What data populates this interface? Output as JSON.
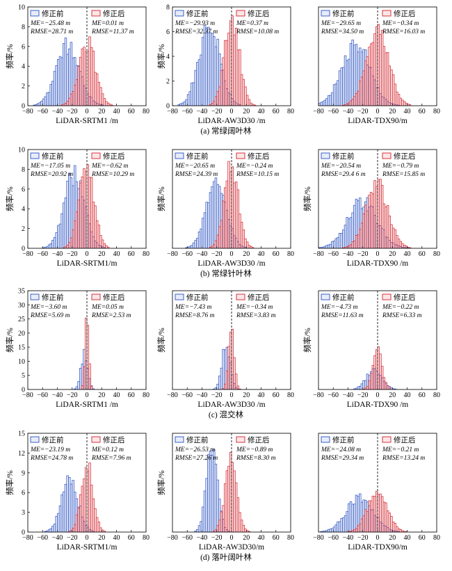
{
  "chart_data": [
    {
      "type": "bar",
      "panel": "a",
      "caption": "(a) 常绿阔叶林",
      "xlabel": "LiDAR-SRTM1 /m",
      "ylabel": "频率/%",
      "xlim": [
        -80,
        80
      ],
      "ylim": [
        0,
        10
      ],
      "xticks": [
        -80,
        -60,
        -40,
        -20,
        0,
        20,
        40,
        60,
        80
      ],
      "yticks": [
        0,
        2,
        4,
        6,
        8,
        10
      ],
      "bin_width": 2.5,
      "series": [
        {
          "name": "修正前",
          "color": "#3b5fc8",
          "mean": -25.48,
          "sd": 15.5,
          "peak": 6.2,
          "stats": [
            "ME=−25.48 m",
            "RMSE=28.71 m"
          ]
        },
        {
          "name": "修正后",
          "color": "#d8333b",
          "mean": 0.01,
          "sd": 11.3,
          "peak": 6.7,
          "stats": [
            "ME=0.01 m",
            "RMSE=11.37 m"
          ]
        }
      ]
    },
    {
      "type": "bar",
      "panel": "a",
      "caption": "",
      "xlabel": "LiDAR-AW3D30 /m",
      "ylabel": "频率/%",
      "xlim": [
        -80,
        80
      ],
      "ylim": [
        0,
        8
      ],
      "xticks": [
        -80,
        -60,
        -40,
        -20,
        0,
        20,
        40,
        60,
        80
      ],
      "yticks": [
        0,
        2,
        4,
        6,
        8
      ],
      "bin_width": 2.5,
      "series": [
        {
          "name": "修正前",
          "color": "#3b5fc8",
          "mean": -29.93,
          "sd": 14,
          "peak": 6.9,
          "stats": [
            "ME=−29.93 m",
            "RMSE=32.37 m"
          ]
        },
        {
          "name": "修正后",
          "color": "#d8333b",
          "mean": 0.37,
          "sd": 10,
          "peak": 7.3,
          "stats": [
            "ME=0.37 m",
            "RMSE=10.08 m"
          ]
        }
      ]
    },
    {
      "type": "bar",
      "panel": "a",
      "caption": "",
      "xlabel": "LiDAR-TDX90/m",
      "ylabel": "",
      "xlim": [
        -80,
        80
      ],
      "ylim": [
        0,
        5.5
      ],
      "xticks": [
        -80,
        -60,
        -40,
        -20,
        0,
        20,
        40,
        60,
        80
      ],
      "yticks": [],
      "bin_width": 2.5,
      "series": [
        {
          "name": "修正前",
          "color": "#3b5fc8",
          "mean": -29.65,
          "sd": 19,
          "peak": 3.5,
          "stats": [
            "ME=−29.65 m",
            "RMSE=34.50 m"
          ]
        },
        {
          "name": "修正后",
          "color": "#d8333b",
          "mean": -0.34,
          "sd": 15,
          "peak": 4.3,
          "stats": [
            "ME=−0.34 m",
            "RMSE=16.03 m"
          ]
        }
      ]
    },
    {
      "type": "bar",
      "panel": "b",
      "caption": "(b) 常绿针叶林",
      "xlabel": "LiDAR-SRTM1/m",
      "ylabel": "频率/%",
      "xlim": [
        -80,
        80
      ],
      "ylim": [
        0,
        10
      ],
      "xticks": [
        -80,
        -60,
        -40,
        -20,
        0,
        20,
        40,
        60,
        80
      ],
      "yticks": [
        0,
        2,
        4,
        6,
        8,
        10
      ],
      "bin_width": 2.5,
      "series": [
        {
          "name": "修正前",
          "color": "#3b5fc8",
          "mean": -17.05,
          "sd": 13.5,
          "peak": 7.7,
          "stats": [
            "ME=−17.05 m",
            "RMSE=20.92 m"
          ]
        },
        {
          "name": "修正后",
          "color": "#d8333b",
          "mean": -0.62,
          "sd": 10,
          "peak": 8.8,
          "stats": [
            "ME=−0.62 m",
            "RMSE=10.29 m"
          ]
        }
      ]
    },
    {
      "type": "bar",
      "panel": "b",
      "caption": "",
      "xlabel": "LiDAR-AW3D30 /m",
      "ylabel": "频率/%",
      "xlim": [
        -80,
        80
      ],
      "ylim": [
        0,
        10
      ],
      "xticks": [
        -80,
        -60,
        -40,
        -20,
        0,
        20,
        40,
        60,
        80
      ],
      "yticks": [],
      "bin_width": 2.5,
      "series": [
        {
          "name": "修正前",
          "color": "#3b5fc8",
          "mean": -20.65,
          "sd": 13.5,
          "peak": 6.7,
          "stats": [
            "ME=−20.65 m",
            "RMSE=24.39 m"
          ]
        },
        {
          "name": "修正后",
          "color": "#d8333b",
          "mean": -0.24,
          "sd": 9.5,
          "peak": 8.4,
          "stats": [
            "ME=−0.24 m",
            "RMSE=10.15 m"
          ]
        }
      ]
    },
    {
      "type": "bar",
      "panel": "b",
      "caption": "",
      "xlabel": "LiDAR-TDX90 /m",
      "ylabel": "频率/%",
      "xlim": [
        -80,
        80
      ],
      "ylim": [
        0,
        8
      ],
      "xticks": [
        -80,
        -60,
        -40,
        -20,
        0,
        20,
        40,
        60,
        80
      ],
      "yticks": [],
      "bin_width": 2.5,
      "series": [
        {
          "name": "修正前",
          "color": "#3b5fc8",
          "mean": -20.54,
          "sd": 20,
          "peak": 3.9,
          "stats": [
            "ME=−20.54 m",
            "RMSE=29.4 6 m"
          ]
        },
        {
          "name": "修正后",
          "color": "#d8333b",
          "mean": -0.79,
          "sd": 15,
          "peak": 5.3,
          "stats": [
            "ME=−0.79 m",
            "RMSE=15.85 m"
          ]
        }
      ]
    },
    {
      "type": "bar",
      "panel": "c",
      "caption": "(c) 混交林",
      "xlabel": "LiDAR-SRTM1 /m",
      "ylabel": "频率/%",
      "xlim": [
        -80,
        80
      ],
      "ylim": [
        0,
        35
      ],
      "xticks": [
        -80,
        -60,
        -40,
        -20,
        0,
        20,
        40,
        60,
        80
      ],
      "yticks": [
        0,
        5,
        10,
        15,
        20,
        25,
        30,
        35
      ],
      "bin_width": 2.5,
      "series": [
        {
          "name": "修正前",
          "color": "#3b5fc8",
          "mean": -3.6,
          "sd": 4.5,
          "peak": 13,
          "stats": [
            "ME=−3.60 m",
            "RMSE=5.69 m"
          ]
        },
        {
          "name": "修正后",
          "color": "#d8333b",
          "mean": 0.05,
          "sd": 2.5,
          "peak": 30,
          "stats": [
            "ME=0.05 m",
            "RMSE=2.53 m"
          ]
        }
      ]
    },
    {
      "type": "bar",
      "panel": "c",
      "caption": "",
      "xlabel": "LiDAR-AW3D30 /m",
      "ylabel": "频率/%",
      "xlim": [
        -80,
        80
      ],
      "ylim": [
        0,
        35
      ],
      "xticks": [
        -80,
        -60,
        -40,
        -20,
        0,
        20,
        40,
        60,
        80
      ],
      "yticks": [],
      "bin_width": 2.5,
      "series": [
        {
          "name": "修正前",
          "color": "#3b5fc8",
          "mean": -7.43,
          "sd": 5.5,
          "peak": 16,
          "stats": [
            "ME=−7.43 m",
            "RMSE=8.76 m"
          ]
        },
        {
          "name": "修正后",
          "color": "#d8333b",
          "mean": -0.34,
          "sd": 3.8,
          "peak": 22,
          "stats": [
            "ME=−0.34 m",
            "RMSE=3.83 m"
          ]
        }
      ]
    },
    {
      "type": "bar",
      "panel": "c",
      "caption": "",
      "xlabel": "LiDAR-TDX90 /m",
      "ylabel": "频率/%",
      "xlim": [
        -80,
        80
      ],
      "ylim": [
        0,
        35
      ],
      "xticks": [
        -80,
        -60,
        -40,
        -20,
        0,
        20,
        40,
        60,
        80
      ],
      "yticks": [],
      "bin_width": 2.5,
      "series": [
        {
          "name": "修正前",
          "color": "#3b5fc8",
          "mean": -4.73,
          "sd": 10.5,
          "peak": 7,
          "stats": [
            "ME=−4.73 m",
            "RMSE=11.63 m"
          ]
        },
        {
          "name": "修正后",
          "color": "#d8333b",
          "mean": -0.22,
          "sd": 6.3,
          "peak": 14,
          "stats": [
            "ME=−0.22 m",
            "RMSE=6.33 m"
          ]
        }
      ]
    },
    {
      "type": "bar",
      "panel": "d",
      "caption": "(d) 落叶阔叶林",
      "xlabel": "LiDAR-SRTM1/m",
      "ylabel": "频率/%",
      "xlim": [
        -80,
        80
      ],
      "ylim": [
        0,
        15
      ],
      "xticks": [
        -80,
        -60,
        -40,
        -20,
        0,
        20,
        40,
        60,
        80
      ],
      "yticks": [
        0,
        3,
        6,
        9,
        12,
        15
      ],
      "bin_width": 2.5,
      "series": [
        {
          "name": "修正前",
          "color": "#3b5fc8",
          "mean": -23.19,
          "sd": 11,
          "peak": 8.3,
          "stats": [
            "ME=−23.19 m",
            "RMSE=24.78 m"
          ]
        },
        {
          "name": "修正后",
          "color": "#d8333b",
          "mean": 0.12,
          "sd": 8,
          "peak": 10.3,
          "stats": [
            "ME=0.12 m",
            "RMSE=7.96 m"
          ]
        }
      ]
    },
    {
      "type": "bar",
      "panel": "d",
      "caption": "",
      "xlabel": "LiDAR-AW3D30/m",
      "ylabel": "频率/%",
      "xlim": [
        -80,
        80
      ],
      "ylim": [
        0,
        15
      ],
      "xticks": [
        -80,
        -60,
        -40,
        -20,
        0,
        20,
        40,
        60,
        80
      ],
      "yticks": [],
      "bin_width": 2.5,
      "series": [
        {
          "name": "修正前",
          "color": "#3b5fc8",
          "mean": -26.53,
          "sd": 7.5,
          "peak": 13.5,
          "stats": [
            "ME=−26.53 m",
            "RMSE=27.26 m"
          ]
        },
        {
          "name": "修正后",
          "color": "#d8333b",
          "mean": -0.89,
          "sd": 8,
          "peak": 10.8,
          "stats": [
            "ME=−0.89 m",
            "RMSE=8.30 m"
          ]
        }
      ]
    },
    {
      "type": "bar",
      "panel": "d",
      "caption": "",
      "xlabel": "LiDAR-TDX90/m",
      "ylabel": "",
      "xlim": [
        -80,
        80
      ],
      "ylim": [
        0,
        15
      ],
      "xticks": [
        -80,
        -60,
        -40,
        -20,
        0,
        20,
        40,
        60,
        80
      ],
      "yticks": [],
      "bin_width": 2.5,
      "series": [
        {
          "name": "修正前",
          "color": "#3b5fc8",
          "mean": -24.08,
          "sd": 18,
          "peak": 5.5,
          "stats": [
            "ME=−24.08 m",
            "RMSE=29.34 m"
          ]
        },
        {
          "name": "修正后",
          "color": "#d8333b",
          "mean": -0.21,
          "sd": 13,
          "peak": 6.5,
          "stats": [
            "ME=−0.21 m",
            "RMSE=13.24 m"
          ]
        }
      ]
    }
  ]
}
